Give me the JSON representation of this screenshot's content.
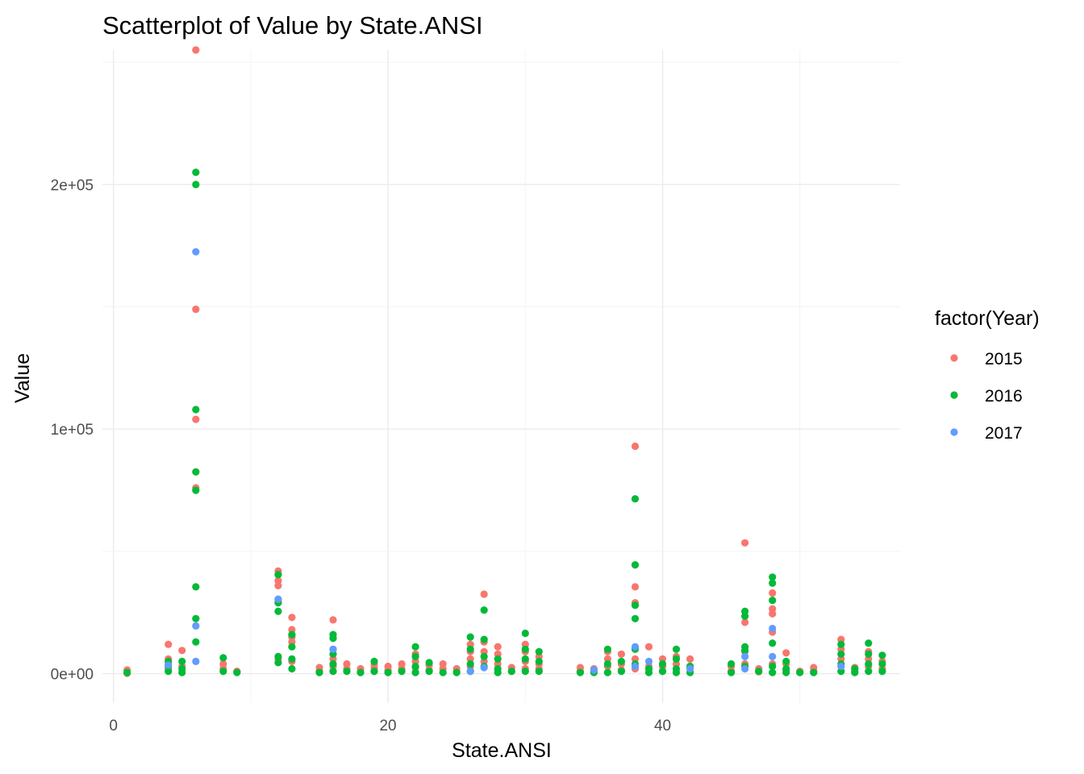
{
  "chart_data": {
    "type": "scatter",
    "title": "Scatterplot of Value by State.ANSI",
    "xlabel": "State.ANSI",
    "ylabel": "Value",
    "xlim": [
      -0.8,
      57.3
    ],
    "ylim": [
      -12000,
      255000
    ],
    "x_ticks": [
      0,
      20,
      40
    ],
    "x_tick_labels": [
      "0",
      "20",
      "40"
    ],
    "y_ticks": [
      0,
      100000,
      200000
    ],
    "y_tick_labels": [
      "0e+00",
      "1e+05",
      "2e+05"
    ],
    "grid": true,
    "legend": {
      "title": "factor(Year)",
      "placement": "right"
    },
    "series": [
      {
        "name": "2015",
        "color": "#F8766D",
        "points": [
          [
            1,
            200
          ],
          [
            1,
            1500
          ],
          [
            4,
            12000
          ],
          [
            4,
            6000
          ],
          [
            4,
            4000
          ],
          [
            4,
            2000
          ],
          [
            5,
            9500
          ],
          [
            5,
            3000
          ],
          [
            6,
            255000
          ],
          [
            6,
            149000
          ],
          [
            6,
            104000
          ],
          [
            6,
            76000
          ],
          [
            8,
            4000
          ],
          [
            8,
            2000
          ],
          [
            9,
            1000
          ],
          [
            12,
            42000
          ],
          [
            12,
            38000
          ],
          [
            12,
            36000
          ],
          [
            12,
            30000
          ],
          [
            12,
            6000
          ],
          [
            13,
            23000
          ],
          [
            13,
            18000
          ],
          [
            13,
            15000
          ],
          [
            13,
            13000
          ],
          [
            13,
            5000
          ],
          [
            15,
            2500
          ],
          [
            15,
            1000
          ],
          [
            16,
            22000
          ],
          [
            16,
            10000
          ],
          [
            16,
            6000
          ],
          [
            16,
            3000
          ],
          [
            17,
            4000
          ],
          [
            17,
            2000
          ],
          [
            18,
            2000
          ],
          [
            18,
            800
          ],
          [
            19,
            4000
          ],
          [
            19,
            2500
          ],
          [
            19,
            1000
          ],
          [
            20,
            3000
          ],
          [
            20,
            1500
          ],
          [
            21,
            4000
          ],
          [
            21,
            2000
          ],
          [
            22,
            8000
          ],
          [
            22,
            5000
          ],
          [
            22,
            2500
          ],
          [
            23,
            3500
          ],
          [
            23,
            1500
          ],
          [
            24,
            4000
          ],
          [
            24,
            2000
          ],
          [
            25,
            2000
          ],
          [
            25,
            800
          ],
          [
            26,
            12000
          ],
          [
            26,
            9000
          ],
          [
            26,
            6000
          ],
          [
            26,
            3000
          ],
          [
            27,
            32500
          ],
          [
            27,
            13000
          ],
          [
            27,
            9000
          ],
          [
            27,
            5000
          ],
          [
            28,
            11000
          ],
          [
            28,
            8000
          ],
          [
            28,
            4000
          ],
          [
            29,
            2500
          ],
          [
            29,
            1000
          ],
          [
            30,
            12000
          ],
          [
            30,
            9000
          ],
          [
            30,
            5000
          ],
          [
            30,
            2000
          ],
          [
            31,
            7000
          ],
          [
            31,
            4000
          ],
          [
            31,
            2000
          ],
          [
            34,
            2500
          ],
          [
            34,
            1000
          ],
          [
            35,
            2000
          ],
          [
            35,
            800
          ],
          [
            36,
            9000
          ],
          [
            36,
            6000
          ],
          [
            36,
            3000
          ],
          [
            37,
            8000
          ],
          [
            37,
            4000
          ],
          [
            37,
            1500
          ],
          [
            38,
            93000
          ],
          [
            38,
            35500
          ],
          [
            38,
            29000
          ],
          [
            38,
            6000
          ],
          [
            38,
            2000
          ],
          [
            39,
            11000
          ],
          [
            39,
            3000
          ],
          [
            40,
            6000
          ],
          [
            40,
            3000
          ],
          [
            40,
            1000
          ],
          [
            41,
            7000
          ],
          [
            41,
            4000
          ],
          [
            42,
            6000
          ],
          [
            42,
            3000
          ],
          [
            45,
            3000
          ],
          [
            45,
            1000
          ],
          [
            46,
            53500
          ],
          [
            46,
            21000
          ],
          [
            46,
            9000
          ],
          [
            46,
            4000
          ],
          [
            47,
            2000
          ],
          [
            47,
            800
          ],
          [
            48,
            33000
          ],
          [
            48,
            26500
          ],
          [
            48,
            24500
          ],
          [
            48,
            17000
          ],
          [
            48,
            4000
          ],
          [
            49,
            8500
          ],
          [
            49,
            4000
          ],
          [
            49,
            1500
          ],
          [
            50,
            1000
          ],
          [
            51,
            2500
          ],
          [
            51,
            1000
          ],
          [
            53,
            14000
          ],
          [
            53,
            10000
          ],
          [
            53,
            6000
          ],
          [
            53,
            3000
          ],
          [
            54,
            2500
          ],
          [
            54,
            1000
          ],
          [
            55,
            9000
          ],
          [
            55,
            6000
          ],
          [
            55,
            3000
          ],
          [
            56,
            5000
          ],
          [
            56,
            2000
          ]
        ]
      },
      {
        "name": "2016",
        "color": "#00BA38",
        "points": [
          [
            1,
            500
          ],
          [
            4,
            5000
          ],
          [
            4,
            3000
          ],
          [
            4,
            1000
          ],
          [
            5,
            5000
          ],
          [
            5,
            2000
          ],
          [
            5,
            500
          ],
          [
            6,
            205000
          ],
          [
            6,
            200000
          ],
          [
            6,
            108000
          ],
          [
            6,
            82500
          ],
          [
            6,
            75000
          ],
          [
            6,
            35500
          ],
          [
            6,
            22500
          ],
          [
            6,
            13000
          ],
          [
            8,
            6500
          ],
          [
            8,
            1000
          ],
          [
            9,
            500
          ],
          [
            12,
            40500
          ],
          [
            12,
            29000
          ],
          [
            12,
            25500
          ],
          [
            12,
            7000
          ],
          [
            12,
            4500
          ],
          [
            13,
            16000
          ],
          [
            13,
            11000
          ],
          [
            13,
            6000
          ],
          [
            13,
            2000
          ],
          [
            15,
            500
          ],
          [
            16,
            16000
          ],
          [
            16,
            14500
          ],
          [
            16,
            8000
          ],
          [
            16,
            4000
          ],
          [
            16,
            1000
          ],
          [
            17,
            1000
          ],
          [
            18,
            500
          ],
          [
            19,
            5000
          ],
          [
            19,
            1000
          ],
          [
            20,
            500
          ],
          [
            21,
            1000
          ],
          [
            22,
            11000
          ],
          [
            22,
            7000
          ],
          [
            22,
            3000
          ],
          [
            22,
            500
          ],
          [
            23,
            4500
          ],
          [
            23,
            1000
          ],
          [
            24,
            500
          ],
          [
            25,
            500
          ],
          [
            26,
            15000
          ],
          [
            26,
            10000
          ],
          [
            26,
            4000
          ],
          [
            26,
            1000
          ],
          [
            27,
            26000
          ],
          [
            27,
            14000
          ],
          [
            27,
            7000
          ],
          [
            27,
            3000
          ],
          [
            28,
            6000
          ],
          [
            28,
            2000
          ],
          [
            28,
            500
          ],
          [
            29,
            1000
          ],
          [
            30,
            16500
          ],
          [
            30,
            10000
          ],
          [
            30,
            6000
          ],
          [
            30,
            1000
          ],
          [
            31,
            9000
          ],
          [
            31,
            5000
          ],
          [
            31,
            1000
          ],
          [
            34,
            500
          ],
          [
            35,
            500
          ],
          [
            36,
            10000
          ],
          [
            36,
            4000
          ],
          [
            36,
            500
          ],
          [
            37,
            5000
          ],
          [
            37,
            1000
          ],
          [
            38,
            71500
          ],
          [
            38,
            44500
          ],
          [
            38,
            28000
          ],
          [
            38,
            22500
          ],
          [
            38,
            10000
          ],
          [
            38,
            4000
          ],
          [
            39,
            2000
          ],
          [
            39,
            500
          ],
          [
            40,
            4000
          ],
          [
            40,
            1000
          ],
          [
            41,
            10000
          ],
          [
            41,
            6000
          ],
          [
            41,
            2000
          ],
          [
            41,
            500
          ],
          [
            42,
            3000
          ],
          [
            42,
            500
          ],
          [
            45,
            4000
          ],
          [
            45,
            500
          ],
          [
            46,
            25500
          ],
          [
            46,
            23500
          ],
          [
            46,
            11000
          ],
          [
            46,
            9500
          ],
          [
            46,
            3000
          ],
          [
            47,
            1000
          ],
          [
            48,
            39500
          ],
          [
            48,
            37000
          ],
          [
            48,
            30000
          ],
          [
            48,
            12500
          ],
          [
            48,
            3000
          ],
          [
            48,
            500
          ],
          [
            49,
            5000
          ],
          [
            49,
            2000
          ],
          [
            49,
            500
          ],
          [
            50,
            500
          ],
          [
            51,
            500
          ],
          [
            53,
            12000
          ],
          [
            53,
            8000
          ],
          [
            53,
            4000
          ],
          [
            53,
            1000
          ],
          [
            54,
            2000
          ],
          [
            54,
            500
          ],
          [
            55,
            12500
          ],
          [
            55,
            8000
          ],
          [
            55,
            4000
          ],
          [
            55,
            1000
          ],
          [
            56,
            7500
          ],
          [
            56,
            4000
          ],
          [
            56,
            1000
          ]
        ]
      },
      {
        "name": "2017",
        "color": "#619CFF",
        "points": [
          [
            4,
            3500
          ],
          [
            6,
            172500
          ],
          [
            6,
            19500
          ],
          [
            6,
            5000
          ],
          [
            12,
            30500
          ],
          [
            16,
            10000
          ],
          [
            26,
            1000
          ],
          [
            27,
            2500
          ],
          [
            35,
            1500
          ],
          [
            38,
            11000
          ],
          [
            38,
            3000
          ],
          [
            39,
            5000
          ],
          [
            42,
            2000
          ],
          [
            46,
            7000
          ],
          [
            46,
            2000
          ],
          [
            48,
            18500
          ],
          [
            48,
            7000
          ],
          [
            53,
            3000
          ]
        ]
      }
    ]
  }
}
